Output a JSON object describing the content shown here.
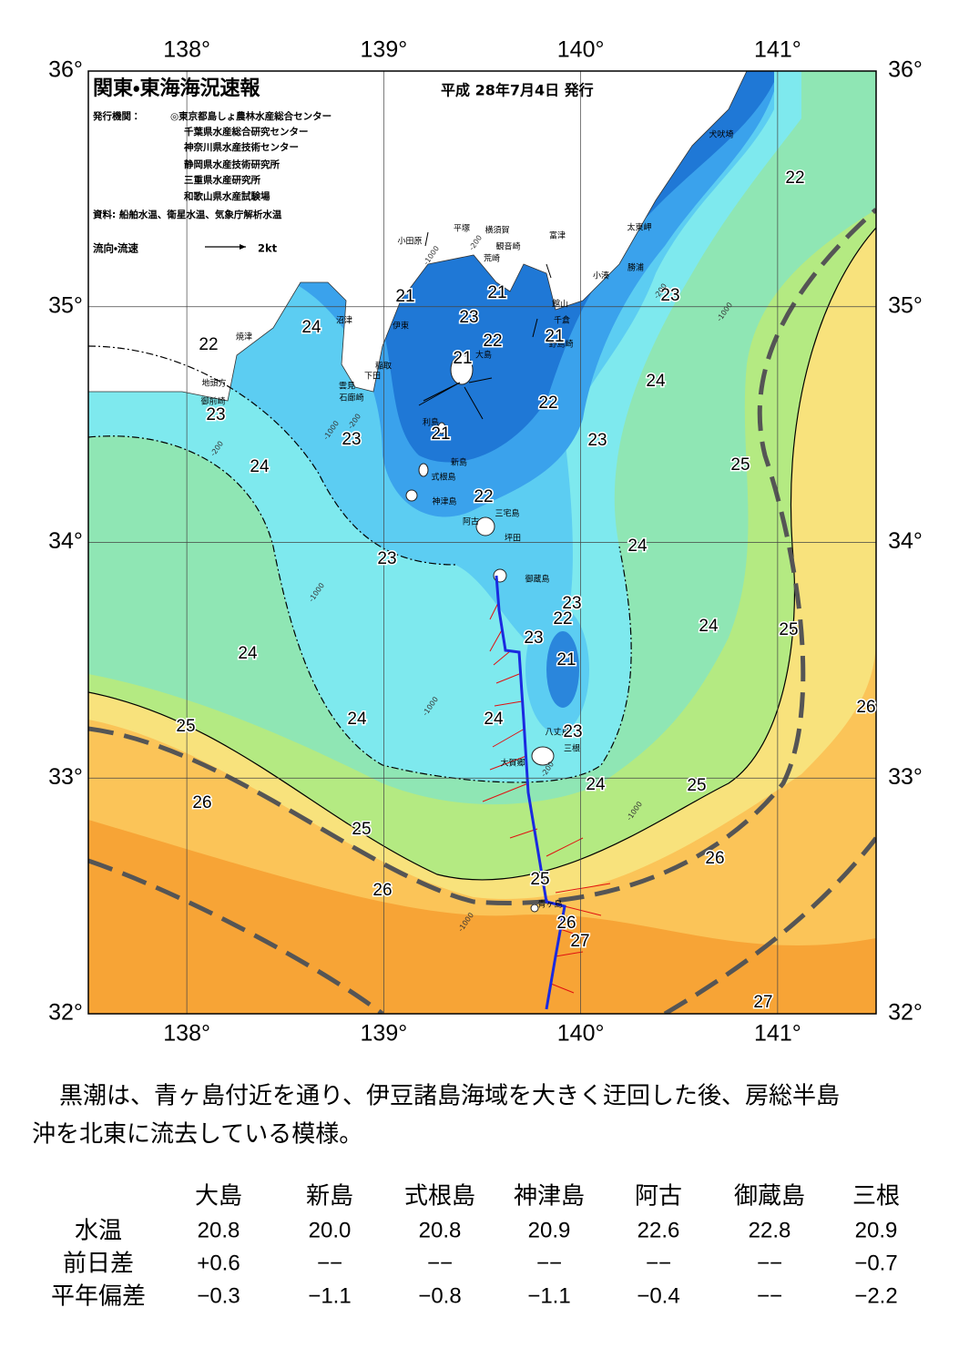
{
  "header": {
    "title": "関東・東海海況速報",
    "issue_date": "平成 28年7月4日 発行",
    "publishers_label": "発行機関：",
    "publishers": [
      "◎東京都島しょ農林水産総合センター",
      "千葉県水産総合研究センター",
      "神奈川県水産技術センター",
      "静岡県水産技術研究所",
      "三重県水産研究所",
      "和歌山県水産試験場"
    ],
    "source": "資料: 船舶水温、衛星水温、気象庁解析水温",
    "legend_label": "流向・流速",
    "legend_speed": "2kt"
  },
  "map": {
    "lon_range": [
      137.5,
      141.5
    ],
    "lat_range": [
      32,
      36
    ],
    "lon_ticks": [
      {
        "value": 138,
        "label": "138°"
      },
      {
        "value": 139,
        "label": "139°"
      },
      {
        "value": 140,
        "label": "140°"
      },
      {
        "value": 141,
        "label": "141°"
      }
    ],
    "lat_ticks": [
      {
        "value": 36,
        "label": "36°"
      },
      {
        "value": 35,
        "label": "35°"
      },
      {
        "value": 34,
        "label": "34°"
      },
      {
        "value": 33,
        "label": "33°"
      },
      {
        "value": 32,
        "label": "32°"
      }
    ],
    "place_names": [
      "小田原",
      "平塚",
      "横須賀",
      "観音崎",
      "富津",
      "荒崎",
      "太東岬",
      "勝浦",
      "小湊",
      "犬吠埼",
      "館山",
      "千倉",
      "野島崎",
      "大島",
      "沼津",
      "伊東",
      "焼津",
      "稲取",
      "下田",
      "雲見",
      "石廊崎",
      "地頭方",
      "御前崎",
      "利島",
      "新島",
      "式根島",
      "神津島",
      "三宅島",
      "阿古",
      "坪田",
      "御蔵島",
      "八丈島",
      "三根",
      "大賀郷",
      "青ヶ島"
    ],
    "temperature_labels": [
      "22",
      "21",
      "21",
      "23",
      "23",
      "24",
      "22",
      "22",
      "21",
      "21",
      "24",
      "22",
      "23",
      "23",
      "21",
      "23",
      "24",
      "25",
      "22",
      "23",
      "24",
      "23",
      "22",
      "23",
      "24",
      "25",
      "24",
      "21",
      "24",
      "24",
      "23",
      "26",
      "25",
      "24",
      "25",
      "26",
      "25",
      "26",
      "25",
      "26",
      "26",
      "27",
      "27"
    ],
    "depth_labels": [
      "-200",
      "-1000",
      "-200",
      "-1000",
      "-200",
      "-1000",
      "-200",
      "-1000",
      "-1000",
      "-200",
      "-1000",
      "-1000"
    ]
  },
  "summary": {
    "lines": [
      "黒潮は、青ヶ島付近を通り、伊豆諸島海域を大きく迂回した後、房総半島",
      "沖を北東に流去している模様。"
    ]
  },
  "table": {
    "columns": [
      "大島",
      "新島",
      "式根島",
      "神津島",
      "阿古",
      "御蔵島",
      "三根"
    ],
    "rows": [
      {
        "label": "水温",
        "cells": [
          "20.8",
          "20.0",
          "20.8",
          "20.9",
          "22.6",
          "22.8",
          "20.9"
        ]
      },
      {
        "label": "前日差",
        "cells": [
          "+0.6",
          "−−",
          "−−",
          "−−",
          "−−",
          "−−",
          "−0.7"
        ]
      },
      {
        "label": "平年偏差",
        "cells": [
          "−0.3",
          "−1.1",
          "−0.8",
          "−1.1",
          "−0.4",
          "−−",
          "−2.2"
        ]
      }
    ]
  }
}
